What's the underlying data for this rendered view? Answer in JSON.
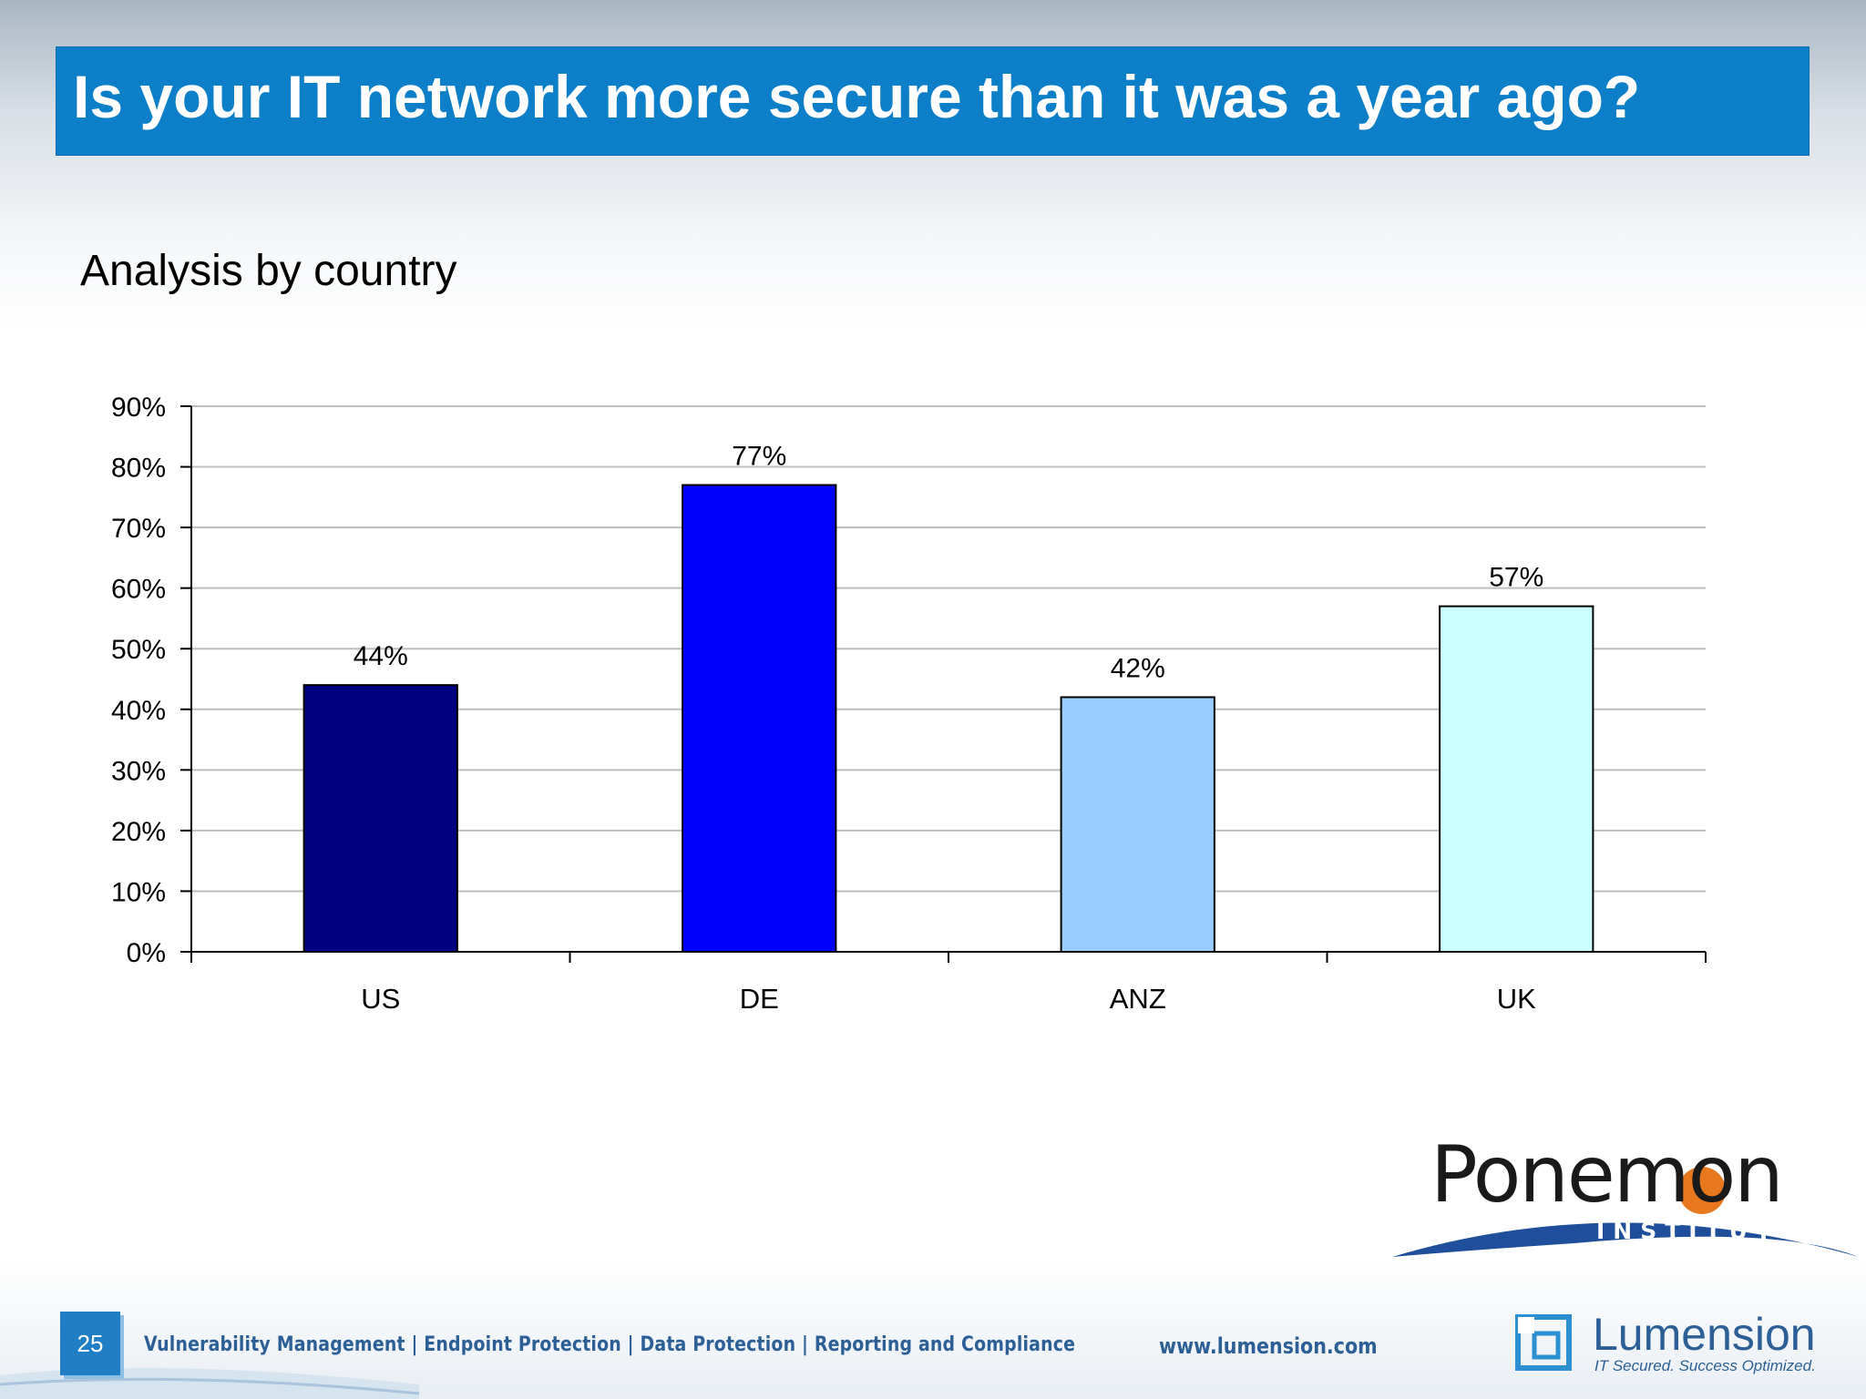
{
  "slide": {
    "title": "Is your IT network more secure than it was a year ago?",
    "subtitle": "Analysis by country",
    "page_number": "25",
    "footer_tagline": "Vulnerability Management | Endpoint Protection | Data Protection | Reporting and Compliance",
    "footer_url": "www.lumension.com"
  },
  "logos": {
    "ponemon_name": "Ponemon",
    "ponemon_sub": "INSTITUTE",
    "lumension_name": "Lumension",
    "lumension_tagline": "IT Secured. Success Optimized."
  },
  "colors": {
    "title_bar": "#0d7ec8",
    "ponemon_orange": "#e8781e",
    "ponemon_blue": "#1f4f9a",
    "lumension_blue": "#2b5f96"
  },
  "chart_data": {
    "type": "bar",
    "categories": [
      "US",
      "DE",
      "ANZ",
      "UK"
    ],
    "values": [
      44,
      77,
      42,
      57
    ],
    "value_labels": [
      "44%",
      "77%",
      "42%",
      "57%"
    ],
    "bar_colors": [
      "#000080",
      "#0000ff",
      "#99ccff",
      "#ccffff"
    ],
    "ylim": [
      0,
      90
    ],
    "yticks": [
      0,
      10,
      20,
      30,
      40,
      50,
      60,
      70,
      80,
      90
    ],
    "ytick_labels": [
      "0%",
      "10%",
      "20%",
      "30%",
      "40%",
      "50%",
      "60%",
      "70%",
      "80%",
      "90%"
    ],
    "grid": true,
    "legend": "none",
    "title": "",
    "xlabel": "",
    "ylabel": ""
  }
}
